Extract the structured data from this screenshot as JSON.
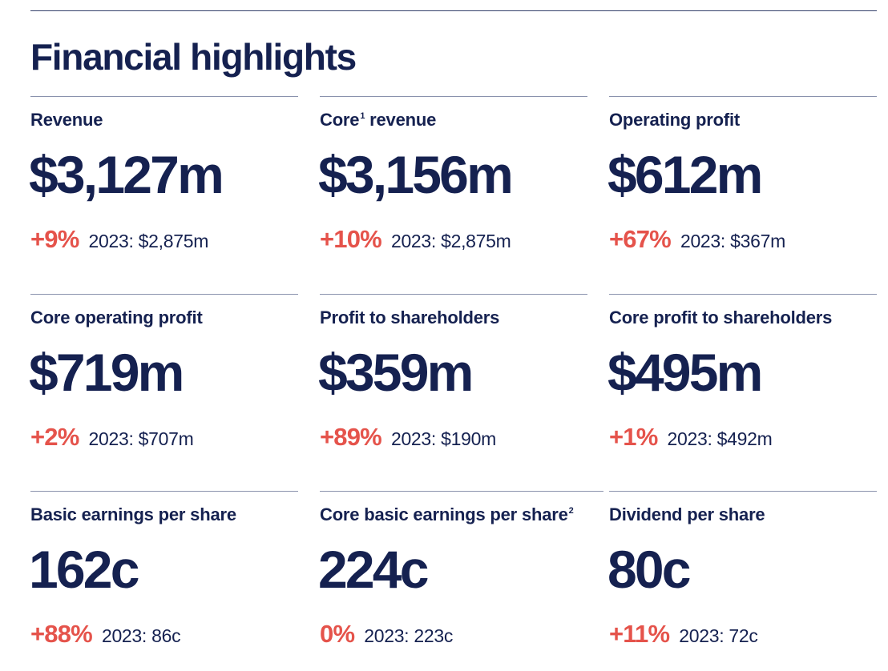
{
  "title": "Financial highlights",
  "metrics": [
    {
      "label": "Revenue",
      "value": "$3,127m",
      "change": "+9%",
      "prior": "2023: $2,875m"
    },
    {
      "label": "Core",
      "sup": "1",
      "label_suffix": " revenue",
      "value": "$3,156m",
      "change": "+10%",
      "prior": "2023: $2,875m"
    },
    {
      "label": "Operating profit",
      "value": "$612m",
      "change": "+67%",
      "prior": "2023: $367m"
    },
    {
      "label": "Core operating profit",
      "value": "$719m",
      "change": "+2%",
      "prior": "2023: $707m"
    },
    {
      "label": "Profit to shareholders",
      "value": "$359m",
      "change": "+89%",
      "prior": "2023: $190m"
    },
    {
      "label": "Core profit to shareholders",
      "value": "$495m",
      "change": "+1%",
      "prior": "2023: $492m"
    },
    {
      "label": "Basic earnings per share",
      "value": "162c",
      "change": "+88%",
      "prior": "2023: 86c"
    },
    {
      "label": "Core basic earnings per share",
      "sup": "2",
      "value": "224c",
      "change": "0%",
      "prior": "2023: 223c"
    },
    {
      "label": "Dividend per share",
      "value": "80c",
      "change": "+11%",
      "prior": "2023: 72c"
    }
  ],
  "colors": {
    "navy": "#152150",
    "accent_red": "#e5534b",
    "rule": "#8a92ad"
  }
}
